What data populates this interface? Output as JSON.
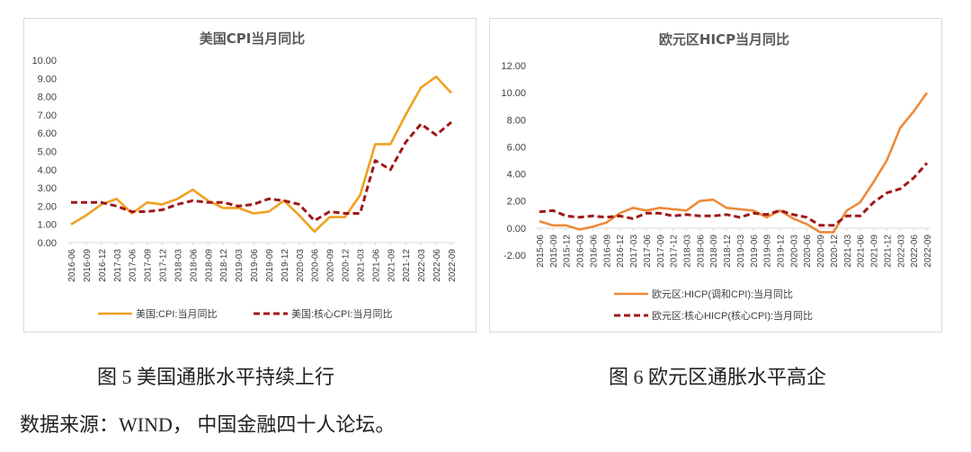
{
  "chart_data": [
    {
      "type": "line",
      "title": "美国CPI当月同比",
      "xlabel": "",
      "ylabel": "",
      "ylim": [
        0,
        10
      ],
      "yticks": [
        "0.00",
        "1.00",
        "2.00",
        "3.00",
        "4.00",
        "5.00",
        "6.00",
        "7.00",
        "8.00",
        "9.00",
        "10.00"
      ],
      "grid": false,
      "legend_position": "bottom",
      "x_ticks": [
        "2016-06",
        "2016-09",
        "2016-12",
        "2017-03",
        "2017-06",
        "2017-09",
        "2017-12",
        "2018-03",
        "2018-06",
        "2018-09",
        "2018-12",
        "2019-03",
        "2019-06",
        "2019-09",
        "2019-12",
        "2020-03",
        "2020-06",
        "2020-09",
        "2020-12",
        "2021-03",
        "2021-06",
        "2021-09",
        "2021-12",
        "2022-03",
        "2022-06",
        "2022-09"
      ],
      "x": [
        "2016-06",
        "2016-09",
        "2016-12",
        "2017-03",
        "2017-06",
        "2017-09",
        "2017-12",
        "2018-03",
        "2018-06",
        "2018-09",
        "2018-12",
        "2019-03",
        "2019-06",
        "2019-09",
        "2019-12",
        "2020-03",
        "2020-06",
        "2020-09",
        "2020-12",
        "2021-03",
        "2021-06",
        "2021-09",
        "2021-12",
        "2022-03",
        "2022-06",
        "2022-09"
      ],
      "series": [
        {
          "name": "美国:CPI:当月同比",
          "color": "#f0a020",
          "style": "solid",
          "values": [
            1.0,
            1.5,
            2.1,
            2.4,
            1.6,
            2.2,
            2.1,
            2.4,
            2.9,
            2.3,
            1.9,
            1.9,
            1.6,
            1.7,
            2.3,
            1.5,
            0.6,
            1.4,
            1.4,
            2.6,
            5.4,
            5.4,
            7.0,
            8.5,
            9.1,
            8.2
          ]
        },
        {
          "name": "美国:核心CPI:当月同比",
          "color": "#a01818",
          "style": "dashed",
          "values": [
            2.2,
            2.2,
            2.2,
            2.0,
            1.7,
            1.7,
            1.8,
            2.1,
            2.3,
            2.2,
            2.2,
            2.0,
            2.1,
            2.4,
            2.3,
            2.1,
            1.2,
            1.7,
            1.6,
            1.6,
            4.5,
            4.0,
            5.5,
            6.5,
            5.9,
            6.6
          ]
        }
      ]
    },
    {
      "type": "line",
      "title": "欧元区HICP当月同比",
      "xlabel": "",
      "ylabel": "",
      "ylim": [
        -2,
        12
      ],
      "yticks": [
        "-2.00",
        "0.00",
        "2.00",
        "4.00",
        "6.00",
        "8.00",
        "10.00",
        "12.00"
      ],
      "grid": false,
      "legend_position": "bottom",
      "x_ticks": [
        "2015-06",
        "2015-09",
        "2015-12",
        "2016-03",
        "2016-06",
        "2016-09",
        "2016-12",
        "2017-03",
        "2017-06",
        "2017-09",
        "2017-12",
        "2018-03",
        "2018-06",
        "2018-09",
        "2018-12",
        "2019-03",
        "2019-06",
        "2019-09",
        "2019-12",
        "2020-03",
        "2020-06",
        "2020-09",
        "2020-12",
        "2021-03",
        "2021-06",
        "2021-09",
        "2021-12",
        "2022-03",
        "2022-06",
        "2022-09"
      ],
      "x": [
        "2015-06",
        "2015-09",
        "2015-12",
        "2016-03",
        "2016-06",
        "2016-09",
        "2016-12",
        "2017-03",
        "2017-06",
        "2017-09",
        "2017-12",
        "2018-03",
        "2018-06",
        "2018-09",
        "2018-12",
        "2019-03",
        "2019-06",
        "2019-09",
        "2019-12",
        "2020-03",
        "2020-06",
        "2020-09",
        "2020-12",
        "2021-03",
        "2021-06",
        "2021-09",
        "2021-12",
        "2022-03",
        "2022-06",
        "2022-09"
      ],
      "series": [
        {
          "name": "欧元区:HICP(调和CPI):当月同比",
          "color": "#ed8a3a",
          "style": "solid",
          "values": [
            0.5,
            0.2,
            0.2,
            -0.1,
            0.1,
            0.4,
            1.1,
            1.5,
            1.3,
            1.5,
            1.4,
            1.3,
            2.0,
            2.1,
            1.5,
            1.4,
            1.3,
            0.8,
            1.3,
            0.7,
            0.3,
            -0.3,
            -0.3,
            1.3,
            1.9,
            3.4,
            5.0,
            7.4,
            8.6,
            10.0
          ]
        },
        {
          "name": "欧元区:核心HICP(核心CPI):当月同比",
          "color": "#a01818",
          "style": "dashed",
          "values": [
            1.2,
            1.3,
            0.9,
            0.8,
            0.9,
            0.8,
            0.9,
            0.7,
            1.1,
            1.1,
            0.9,
            1.0,
            0.9,
            0.9,
            1.0,
            0.8,
            1.1,
            1.0,
            1.3,
            1.0,
            0.8,
            0.2,
            0.2,
            0.9,
            0.9,
            1.9,
            2.6,
            2.9,
            3.7,
            4.8
          ]
        }
      ]
    }
  ],
  "captions": {
    "fig5": "图 5  美国通胀水平持续上行",
    "fig6": "图 6  欧元区通胀水平高企",
    "source": "数据来源：WIND，  中国金融四十人论坛。"
  }
}
